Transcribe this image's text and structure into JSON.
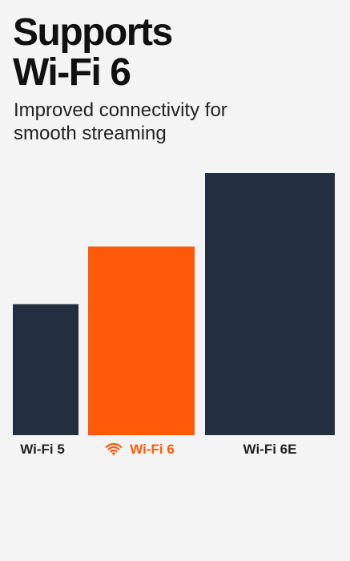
{
  "chart_data": {
    "type": "bar",
    "title_lines": [
      "Supports",
      "Wi-Fi 6"
    ],
    "subtitle_lines": [
      "Improved connectivity for",
      "smooth streaming"
    ],
    "categories": [
      "Wi-Fi 5",
      "Wi-Fi 6",
      "Wi-Fi 6E"
    ],
    "values": [
      50,
      72,
      100
    ],
    "colors": [
      "#232f3e",
      "#ff5a0a",
      "#232f3e"
    ],
    "ylim": [
      0,
      100
    ]
  }
}
